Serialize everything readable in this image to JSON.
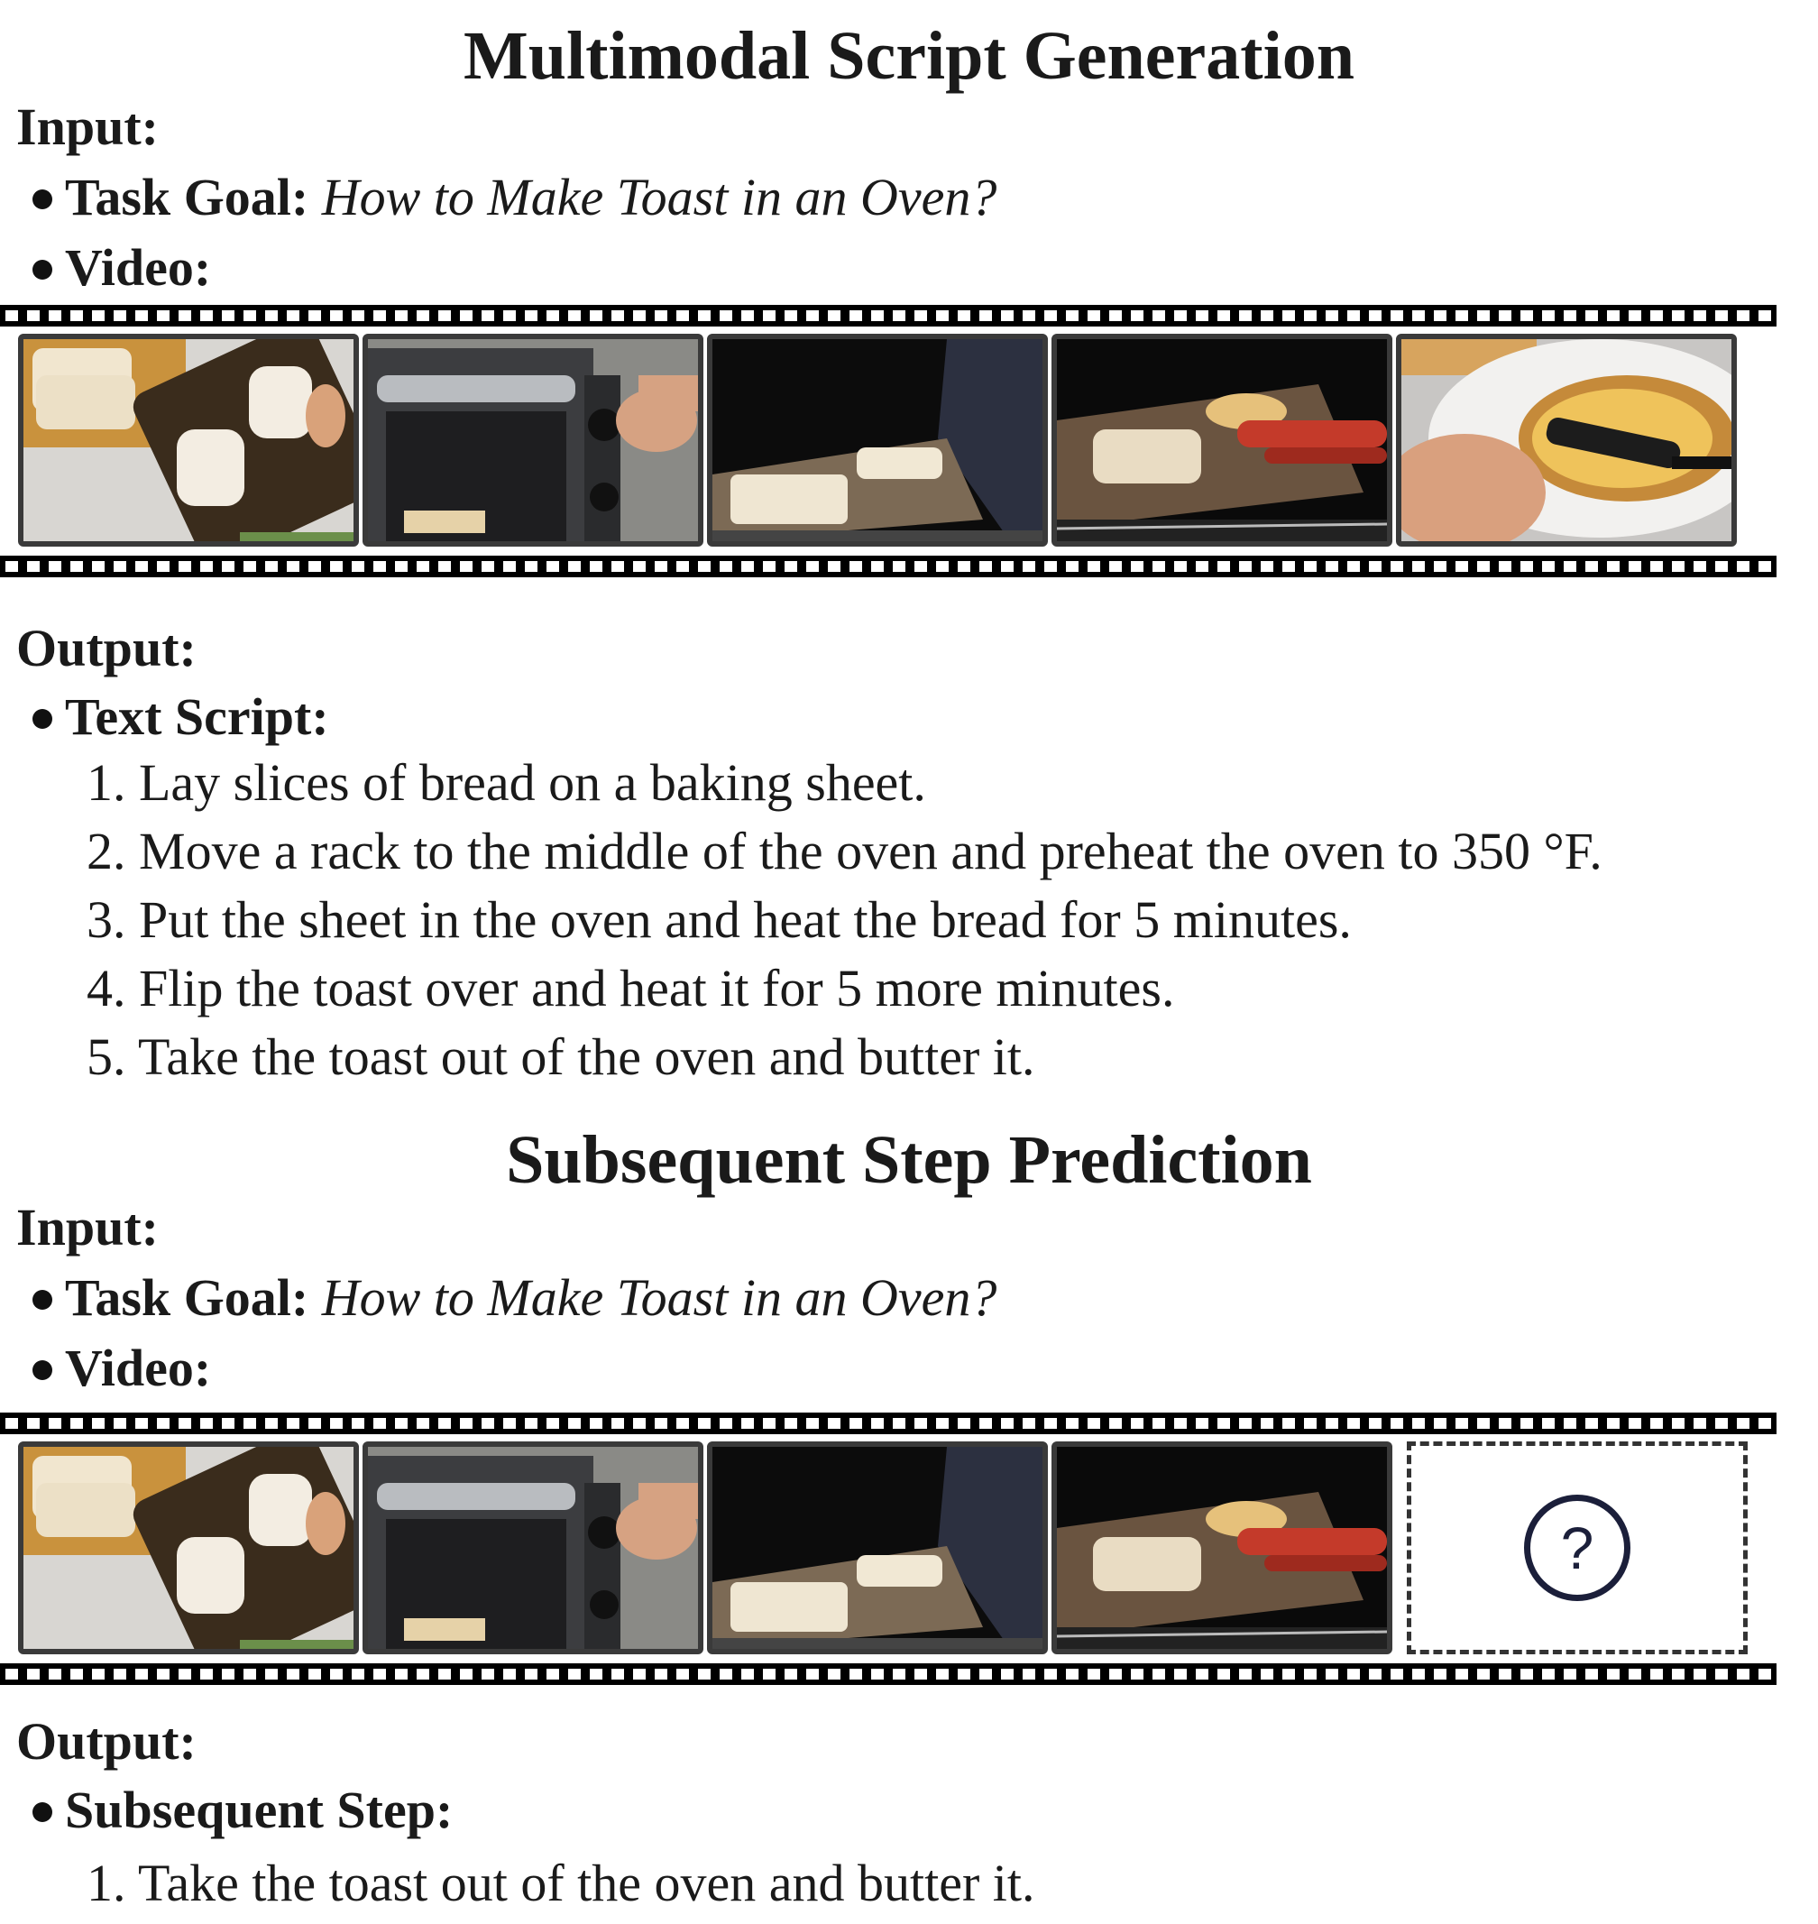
{
  "section1": {
    "title": "Multimodal Script Generation",
    "input_label": "Input:",
    "task_goal_label": "Task Goal:",
    "task_goal_value": "How to Make Toast in an Oven?",
    "video_label": "Video:",
    "output_label": "Output:",
    "output_item_label": "Text Script:",
    "steps": [
      "1. Lay slices of bread on a baking sheet.",
      "2. Move a rack to the middle of the oven and preheat the oven to 350 °F.",
      "3. Put the sheet in the oven and heat the bread for 5 minutes.",
      "4. Flip the toast over and heat it for 5 more minutes.",
      "5. Take the toast out of the oven and butter it."
    ],
    "frames": [
      "bread-on-baking-sheet",
      "oven-knob",
      "bread-in-oven",
      "tongs-flip-toast",
      "buttering-toast"
    ]
  },
  "section2": {
    "title": "Subsequent Step Prediction",
    "input_label": "Input:",
    "task_goal_label": "Task Goal:",
    "task_goal_value": "How to Make Toast in an Oven?",
    "video_label": "Video:",
    "output_label": "Output:",
    "output_item_label": "Subsequent Step:",
    "steps": [
      "1. Take the toast out of the oven and butter it."
    ],
    "frames": [
      "bread-on-baking-sheet",
      "oven-knob",
      "bread-in-oven",
      "tongs-flip-toast",
      "unknown-question-mark"
    ],
    "unknown_symbol": "?"
  }
}
